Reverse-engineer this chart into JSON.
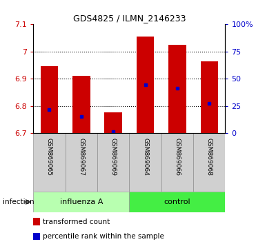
{
  "title": "GDS4825 / ILMN_2146233",
  "samples": [
    "GSM869065",
    "GSM869067",
    "GSM869069",
    "GSM869064",
    "GSM869066",
    "GSM869068"
  ],
  "groups": [
    "influenza A",
    "influenza A",
    "influenza A",
    "control",
    "control",
    "control"
  ],
  "bar_bottom": 6.7,
  "bar_tops": [
    6.945,
    6.91,
    6.775,
    7.055,
    7.025,
    6.965
  ],
  "percentile_values": [
    6.785,
    6.762,
    6.705,
    6.878,
    6.865,
    6.808
  ],
  "ylim_left": [
    6.7,
    7.1
  ],
  "ylim_right": [
    0,
    100
  ],
  "yticks_left": [
    6.7,
    6.8,
    6.9,
    7.0,
    7.1
  ],
  "ytick_labels_left": [
    "6.7",
    "6.8",
    "6.9",
    "7",
    "7.1"
  ],
  "yticks_right": [
    0,
    25,
    50,
    75,
    100
  ],
  "ytick_labels_right": [
    "0",
    "25",
    "50",
    "75",
    "100%"
  ],
  "bar_color": "#CC0000",
  "percentile_color": "#0000CC",
  "influenza_color": "#B8FFB0",
  "control_color": "#44EE44",
  "sample_box_color": "#D0D0D0",
  "title_fontsize": 9,
  "left_ylabel_color": "#CC0000",
  "right_ylabel_color": "#0000CC",
  "legend_red_label": "transformed count",
  "legend_blue_label": "percentile rank within the sample"
}
